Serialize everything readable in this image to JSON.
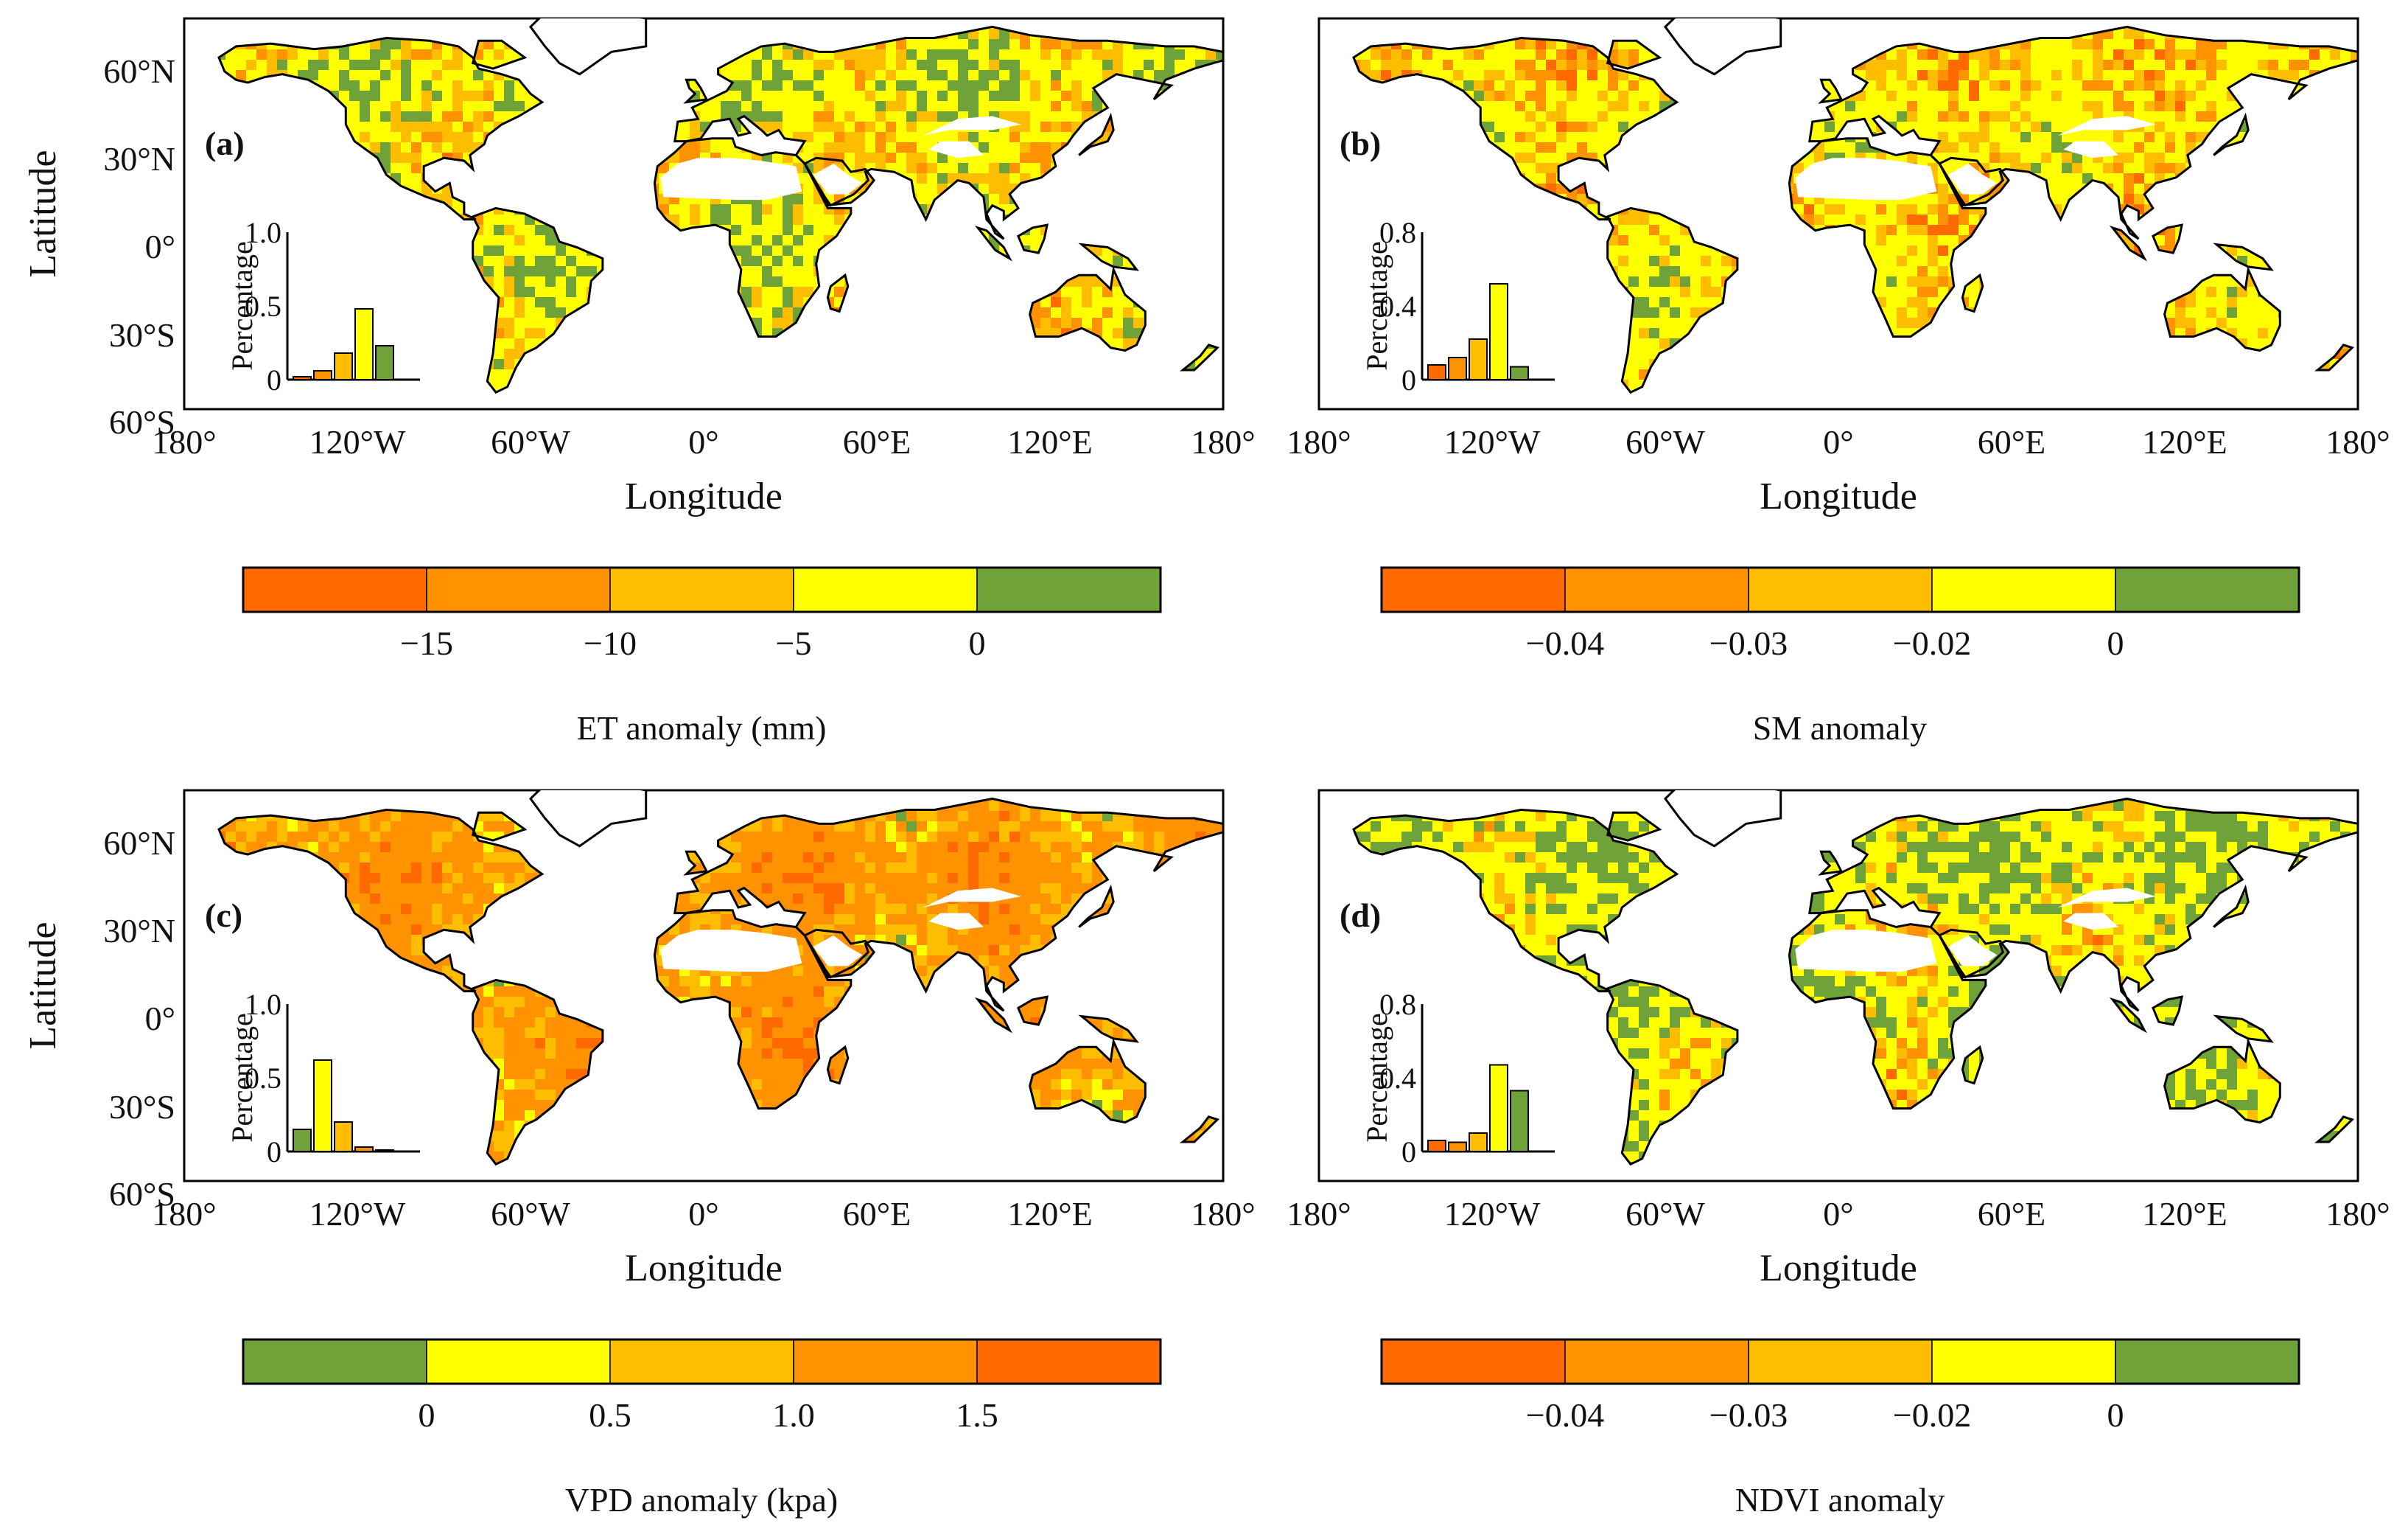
{
  "colors": {
    "ocean": "#ffffff",
    "no_data": "#ffffff",
    "coastline": "#000000",
    "dark_orange": "#ff6a00",
    "orange": "#ff9200",
    "light_orange": "#ffbd00",
    "yellow": "#ffff00",
    "green": "#6fa33a"
  },
  "axes": {
    "x_label": "Longitude",
    "y_label": "Latitude",
    "x_ticks": [
      "180°",
      "120°W",
      "60°W",
      "0°",
      "60°E",
      "120°E",
      "180°"
    ],
    "y_ticks": [
      "60°N",
      "30°N",
      "0°",
      "30°S",
      "60°S"
    ]
  },
  "panels": [
    {
      "label": "(a)",
      "variable": "ET",
      "colorbar": {
        "title": "ET anomaly (mm)",
        "ticks": [
          "−15",
          "−10",
          "−5",
          "0"
        ],
        "class_colors": [
          "#ff6a00",
          "#ff9200",
          "#ffbd00",
          "#ffff00",
          "#6fa33a"
        ]
      },
      "inset": {
        "ylabel": "Percentage",
        "yticks": [
          "0",
          "0.5",
          "1.0"
        ],
        "ymax": 1.0,
        "values": [
          0.02,
          0.06,
          0.18,
          0.48,
          0.23
        ]
      },
      "map_weights": [
        0.06,
        0.17,
        0.17,
        0.28,
        0.32
      ]
    },
    {
      "label": "(b)",
      "variable": "SM",
      "colorbar": {
        "title": "SM anomaly",
        "ticks": [
          "−0.04",
          "−0.03",
          "−0.02",
          "0"
        ],
        "class_colors": [
          "#ff6a00",
          "#ff9200",
          "#ffbd00",
          "#ffff00",
          "#6fa33a"
        ]
      },
      "inset": {
        "ylabel": "Percentage",
        "yticks": [
          "0",
          "0.4",
          "0.8"
        ],
        "ymax": 0.8,
        "values": [
          0.08,
          0.12,
          0.22,
          0.52,
          0.07
        ]
      },
      "map_weights": [
        0.16,
        0.14,
        0.14,
        0.42,
        0.14
      ]
    },
    {
      "label": "(c)",
      "variable": "VPD",
      "colorbar": {
        "title": "VPD anomaly (kpa)",
        "ticks": [
          "0",
          "0.5",
          "1.0",
          "1.5"
        ],
        "class_colors": [
          "#6fa33a",
          "#ffff00",
          "#ffbd00",
          "#ff9200",
          "#ff6a00"
        ]
      },
      "inset": {
        "ylabel": "Percentage",
        "yticks": [
          "0",
          "0.5",
          "1.0"
        ],
        "ymax": 1.0,
        "values": [
          0.15,
          0.62,
          0.2,
          0.03,
          0.01
        ]
      },
      "map_weights": [
        0.2,
        0.42,
        0.2,
        0.12,
        0.06
      ]
    },
    {
      "label": "(d)",
      "variable": "NDVI",
      "colorbar": {
        "title": "NDVI anomaly",
        "ticks": [
          "−0.04",
          "−0.03",
          "−0.02",
          "0"
        ],
        "class_colors": [
          "#ff6a00",
          "#ff9200",
          "#ffbd00",
          "#ffff00",
          "#6fa33a"
        ]
      },
      "inset": {
        "ylabel": "Percentage",
        "yticks": [
          "0",
          "0.4",
          "0.8"
        ],
        "ymax": 0.8,
        "values": [
          0.06,
          0.05,
          0.1,
          0.47,
          0.33
        ]
      },
      "map_weights": [
        0.06,
        0.12,
        0.12,
        0.32,
        0.38
      ]
    }
  ]
}
